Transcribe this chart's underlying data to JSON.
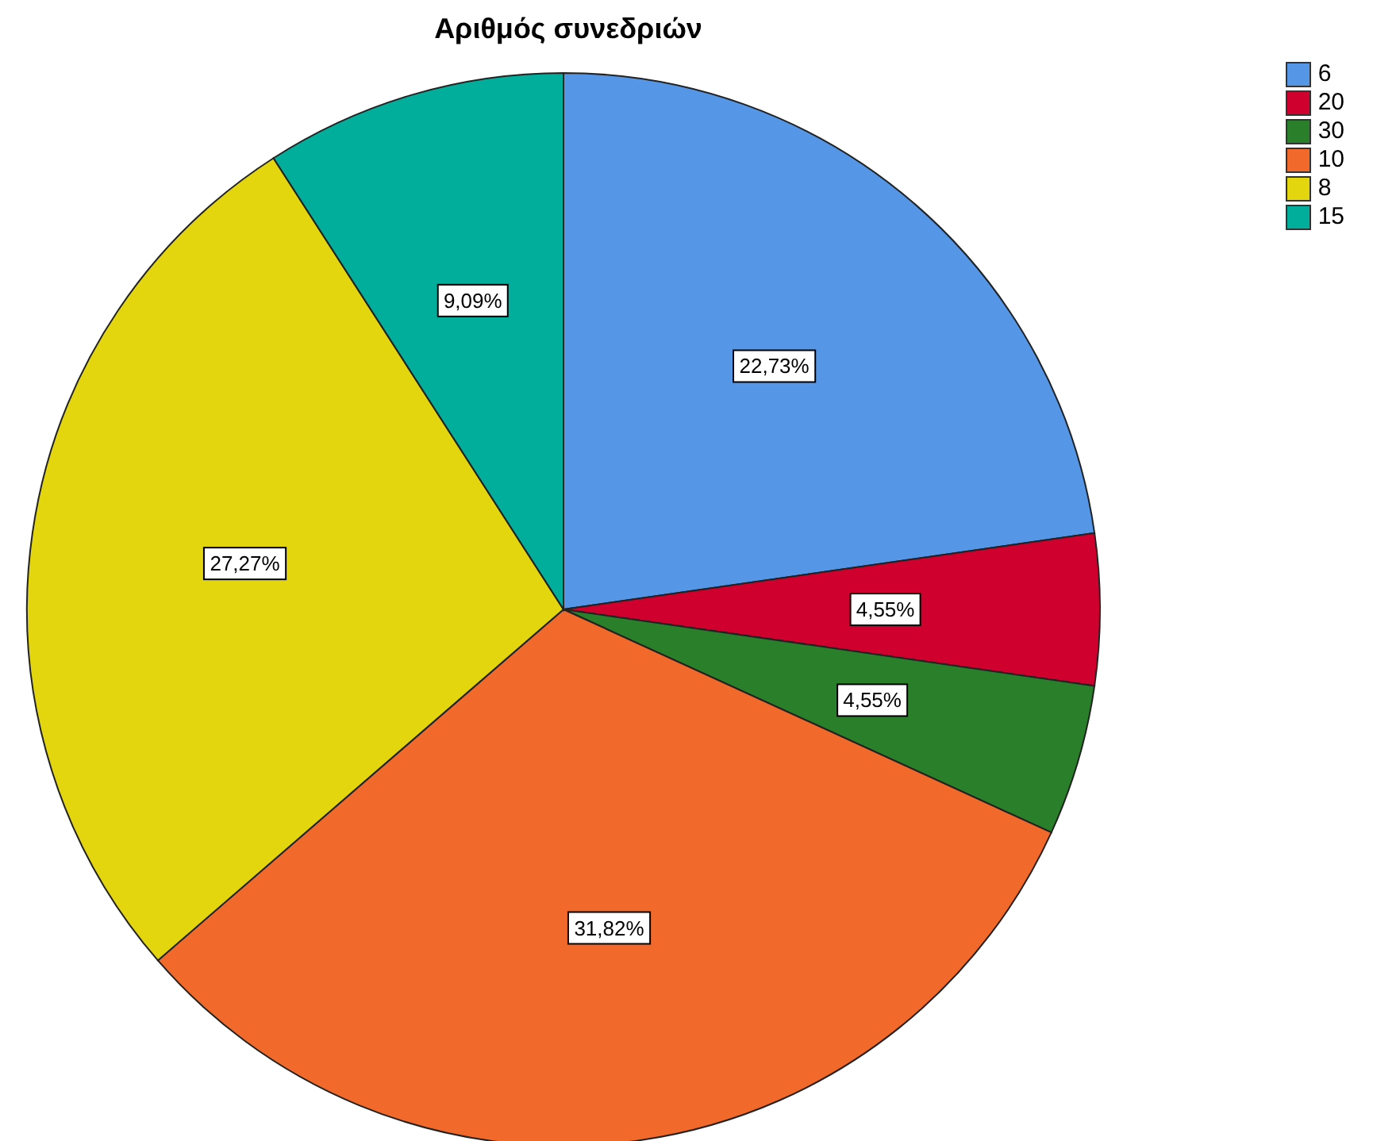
{
  "chart_data": {
    "type": "pie",
    "title": "Αριθμός συνεδριών",
    "categories": [
      "6",
      "20",
      "30",
      "10",
      "8",
      "15"
    ],
    "values": [
      22.73,
      4.55,
      4.55,
      31.82,
      27.27,
      9.09
    ],
    "colors": [
      "#5596e6",
      "#d0002e",
      "#2a7f2a",
      "#f26a2b",
      "#e3d60f",
      "#00ae9b"
    ],
    "value_labels": [
      "22,73%",
      "4,55%",
      "4,55%",
      "31,82%",
      "27,27%",
      "9,09%"
    ],
    "legend": "top right"
  }
}
